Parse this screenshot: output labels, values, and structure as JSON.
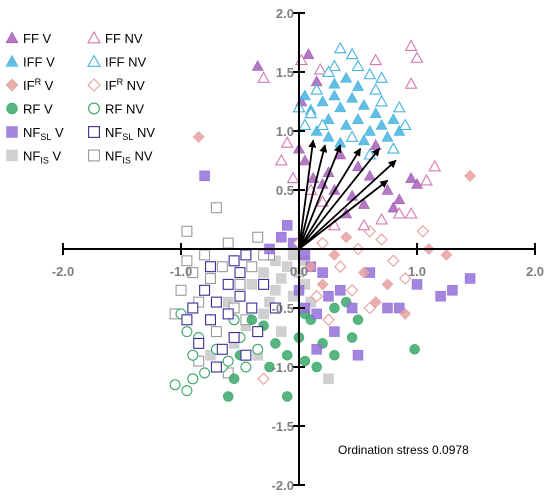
{
  "chart_data": {
    "type": "scatter",
    "title": "",
    "xlabel": "",
    "ylabel": "",
    "xlim": [
      -2.0,
      2.0
    ],
    "ylim": [
      -2.0,
      2.0
    ],
    "x_ticks": [
      "-2.0",
      "-1.0",
      "0.0",
      "1.0",
      "2.0"
    ],
    "y_ticks": [
      "2.0",
      "1.5",
      "1.0",
      "0.5",
      "-0.5",
      "-1.0",
      "-1.5",
      "-2.0"
    ],
    "grid": false,
    "legend_position": "top-left",
    "annotation": "Ordination stress 0.0978",
    "series": [
      {
        "name": "FF V",
        "marker": "triangle",
        "filled": true,
        "color": "#a65fb8",
        "points": [
          [
            -0.35,
            1.55
          ],
          [
            0.08,
            1.65
          ],
          [
            0.15,
            1.42
          ],
          [
            0.02,
            1.25
          ],
          [
            0.0,
            0.85
          ],
          [
            0.05,
            0.75
          ],
          [
            0.12,
            0.6
          ],
          [
            0.2,
            0.55
          ],
          [
            0.3,
            0.5
          ],
          [
            0.45,
            0.45
          ],
          [
            0.6,
            0.62
          ],
          [
            0.75,
            0.5
          ],
          [
            0.85,
            0.42
          ],
          [
            0.95,
            0.6
          ],
          [
            1.0,
            0.55
          ],
          [
            0.5,
            0.7
          ],
          [
            0.35,
            0.8
          ],
          [
            0.65,
            0.88
          ],
          [
            0.55,
            0.38
          ],
          [
            0.4,
            0.3
          ],
          [
            0.25,
            0.65
          ],
          [
            0.8,
            0.35
          ]
        ]
      },
      {
        "name": "FF NV",
        "marker": "triangle",
        "filled": false,
        "color": "#d678b0",
        "points": [
          [
            -0.3,
            1.45
          ],
          [
            0.02,
            1.6
          ],
          [
            0.18,
            1.52
          ],
          [
            0.65,
            1.6
          ],
          [
            0.95,
            1.72
          ],
          [
            1.0,
            1.62
          ],
          [
            0.95,
            1.4
          ],
          [
            -0.15,
            0.75
          ],
          [
            -0.05,
            0.6
          ],
          [
            0.1,
            0.5
          ],
          [
            0.2,
            0.4
          ],
          [
            0.85,
            0.3
          ],
          [
            0.95,
            0.3
          ],
          [
            1.08,
            0.58
          ],
          [
            1.15,
            0.7
          ],
          [
            0.7,
            0.25
          ],
          [
            0.55,
            0.2
          ],
          [
            0.3,
            0.2
          ],
          [
            -0.1,
            0.9
          ]
        ]
      },
      {
        "name": "IFF V",
        "marker": "triangle",
        "filled": true,
        "color": "#45b3e0",
        "points": [
          [
            0.05,
            1.3
          ],
          [
            0.1,
            1.18
          ],
          [
            0.2,
            1.25
          ],
          [
            0.25,
            1.1
          ],
          [
            0.3,
            1.3
          ],
          [
            0.35,
            1.2
          ],
          [
            0.4,
            1.05
          ],
          [
            0.45,
            1.28
          ],
          [
            0.5,
            1.1
          ],
          [
            0.55,
            1.22
          ],
          [
            0.6,
            1.0
          ],
          [
            0.65,
            1.15
          ],
          [
            0.7,
            1.05
          ],
          [
            0.75,
            0.95
          ],
          [
            0.8,
            1.1
          ],
          [
            0.85,
            1.0
          ],
          [
            0.3,
            1.4
          ],
          [
            0.4,
            1.45
          ],
          [
            0.5,
            1.38
          ],
          [
            0.25,
            0.95
          ],
          [
            0.15,
            1.0
          ],
          [
            0.35,
            0.9
          ],
          [
            0.55,
            0.92
          ]
        ]
      },
      {
        "name": "IFF NV",
        "marker": "triangle",
        "filled": false,
        "color": "#45b3e0",
        "points": [
          [
            0.35,
            1.7
          ],
          [
            0.45,
            1.65
          ],
          [
            0.3,
            1.55
          ],
          [
            0.5,
            1.55
          ],
          [
            0.6,
            1.48
          ],
          [
            0.7,
            1.45
          ],
          [
            0.15,
            1.35
          ],
          [
            0.0,
            1.2
          ],
          [
            0.05,
            1.05
          ],
          [
            0.2,
            1.05
          ],
          [
            0.7,
            1.25
          ],
          [
            0.85,
            1.2
          ],
          [
            0.9,
            1.05
          ],
          [
            0.8,
            0.85
          ],
          [
            0.6,
            0.8
          ],
          [
            0.45,
            0.95
          ],
          [
            0.1,
            1.15
          ],
          [
            0.25,
            1.5
          ],
          [
            0.65,
            1.35
          ]
        ]
      },
      {
        "name": "IF^R V",
        "marker": "diamond",
        "filled": true,
        "color": "#e8a0a0",
        "points": [
          [
            -0.85,
            0.95
          ],
          [
            1.45,
            0.62
          ],
          [
            1.1,
            0.0
          ],
          [
            0.9,
            -0.55
          ],
          [
            0.75,
            -0.3
          ],
          [
            0.55,
            -0.2
          ],
          [
            0.3,
            -0.05
          ],
          [
            0.4,
            0.1
          ],
          [
            0.2,
            -0.3
          ],
          [
            1.25,
            -0.05
          ],
          [
            0.65,
            -0.45
          ],
          [
            0.1,
            -0.15
          ]
        ]
      },
      {
        "name": "IF^R NV",
        "marker": "diamond",
        "filled": false,
        "color": "#e8a0a0",
        "points": [
          [
            0.6,
            0.15
          ],
          [
            0.7,
            0.08
          ],
          [
            0.8,
            -0.1
          ],
          [
            0.5,
            0.0
          ],
          [
            0.35,
            -0.15
          ],
          [
            0.2,
            0.05
          ],
          [
            0.45,
            -0.35
          ],
          [
            0.6,
            -0.5
          ],
          [
            0.25,
            -0.6
          ],
          [
            0.15,
            -0.4
          ],
          [
            1.05,
            0.15
          ],
          [
            0.9,
            -0.25
          ],
          [
            -0.3,
            -1.1
          ],
          [
            0.0,
            0.05
          ]
        ]
      },
      {
        "name": "RF V",
        "marker": "circle",
        "filled": true,
        "color": "#3aa86a",
        "points": [
          [
            -0.3,
            -0.65
          ],
          [
            -0.2,
            -0.8
          ],
          [
            -0.1,
            -0.9
          ],
          [
            0.0,
            -0.75
          ],
          [
            0.1,
            -0.6
          ],
          [
            0.2,
            -0.8
          ],
          [
            0.3,
            -0.5
          ],
          [
            0.4,
            -0.45
          ],
          [
            0.5,
            -0.6
          ],
          [
            -0.5,
            -0.9
          ],
          [
            -0.55,
            -1.1
          ],
          [
            -0.6,
            -1.25
          ],
          [
            -0.1,
            -1.25
          ],
          [
            0.05,
            -0.95
          ],
          [
            0.15,
            -1.0
          ],
          [
            0.3,
            -0.9
          ],
          [
            0.45,
            -0.75
          ],
          [
            0.98,
            -0.85
          ],
          [
            -0.4,
            -0.6
          ],
          [
            -0.25,
            -1.0
          ],
          [
            0.05,
            -0.55
          ]
        ]
      },
      {
        "name": "RF NV",
        "marker": "circle",
        "filled": false,
        "color": "#3aa86a",
        "points": [
          [
            -1.0,
            -0.55
          ],
          [
            -0.95,
            -0.7
          ],
          [
            -0.9,
            -0.9
          ],
          [
            -0.8,
            -1.05
          ],
          [
            -0.7,
            -0.85
          ],
          [
            -0.65,
            -1.0
          ],
          [
            -0.75,
            -0.6
          ],
          [
            -0.9,
            -1.1
          ],
          [
            -0.95,
            -1.2
          ],
          [
            -0.6,
            -0.95
          ],
          [
            -0.5,
            -0.75
          ],
          [
            -0.45,
            -1.0
          ],
          [
            -0.35,
            -0.85
          ],
          [
            -0.85,
            -0.75
          ],
          [
            -0.55,
            -0.6
          ],
          [
            -1.05,
            -1.15
          ]
        ]
      },
      {
        "name": "NF_SL V",
        "marker": "square",
        "filled": true,
        "color": "#9370db",
        "points": [
          [
            -0.8,
            0.62
          ],
          [
            -0.25,
            0.0
          ],
          [
            -0.1,
            0.2
          ],
          [
            -0.15,
            0.1
          ],
          [
            0.1,
            -0.15
          ],
          [
            0.0,
            -0.35
          ],
          [
            0.05,
            -0.5
          ],
          [
            0.15,
            -0.55
          ],
          [
            0.25,
            -0.4
          ],
          [
            0.2,
            -0.2
          ],
          [
            0.35,
            -0.35
          ],
          [
            0.6,
            -0.2
          ],
          [
            0.75,
            -0.5
          ],
          [
            0.85,
            -0.5
          ],
          [
            1.0,
            -0.3
          ],
          [
            1.2,
            -0.4
          ],
          [
            1.3,
            -0.35
          ],
          [
            1.45,
            -0.25
          ],
          [
            0.45,
            -0.5
          ],
          [
            0.3,
            -0.7
          ],
          [
            0.5,
            -0.9
          ],
          [
            0.15,
            -0.85
          ],
          [
            0.05,
            -0.05
          ],
          [
            -0.05,
            0.05
          ]
        ]
      },
      {
        "name": "NF_SL NV",
        "marker": "square",
        "filled": false,
        "color": "#3b2e9a",
        "points": [
          [
            -0.45,
            -0.05
          ],
          [
            -0.5,
            -0.2
          ],
          [
            -0.6,
            -0.3
          ],
          [
            -0.7,
            -0.45
          ],
          [
            -0.8,
            -0.35
          ],
          [
            -0.9,
            -0.5
          ],
          [
            -0.75,
            -0.6
          ],
          [
            -0.6,
            -0.55
          ],
          [
            -0.5,
            -0.4
          ],
          [
            -0.4,
            -0.5
          ],
          [
            -0.35,
            -0.7
          ],
          [
            -0.55,
            -0.75
          ],
          [
            -0.65,
            -0.85
          ],
          [
            -0.85,
            -0.8
          ],
          [
            -0.95,
            -0.6
          ],
          [
            -0.3,
            -0.3
          ],
          [
            -0.2,
            -0.5
          ],
          [
            -0.45,
            -0.9
          ],
          [
            -0.7,
            -1.0
          ],
          [
            -0.55,
            -0.1
          ],
          [
            -0.75,
            -0.15
          ]
        ]
      },
      {
        "name": "NF_IS V",
        "marker": "square",
        "filled": true,
        "color": "#c8c8c8",
        "points": [
          [
            -0.05,
            -0.05
          ],
          [
            -0.1,
            -0.15
          ],
          [
            -0.15,
            -0.25
          ],
          [
            -0.2,
            -0.35
          ],
          [
            -0.25,
            -0.45
          ],
          [
            -0.3,
            -0.55
          ],
          [
            0.0,
            -0.2
          ],
          [
            0.05,
            -0.3
          ],
          [
            -0.05,
            -0.4
          ],
          [
            0.1,
            -0.45
          ],
          [
            -0.45,
            -0.65
          ],
          [
            -0.55,
            -0.8
          ],
          [
            -0.35,
            -0.9
          ],
          [
            0.25,
            -1.1
          ],
          [
            0.05,
            -0.1
          ],
          [
            -0.2,
            -0.1
          ],
          [
            -0.3,
            -0.2
          ],
          [
            -0.4,
            -0.3
          ],
          [
            -0.6,
            -0.45
          ],
          [
            -0.75,
            -0.9
          ],
          [
            -0.15,
            -0.7
          ]
        ]
      },
      {
        "name": "NF_IS NV",
        "marker": "square",
        "filled": false,
        "color": "#9a9a9a",
        "points": [
          [
            -0.95,
            0.15
          ],
          [
            -0.7,
            0.35
          ],
          [
            -0.6,
            0.05
          ],
          [
            -0.8,
            -0.05
          ],
          [
            -0.9,
            -0.2
          ],
          [
            -1.0,
            -0.35
          ],
          [
            -0.85,
            -0.45
          ],
          [
            -0.75,
            -0.25
          ],
          [
            -0.65,
            -0.15
          ],
          [
            -0.5,
            -0.3
          ],
          [
            -0.4,
            -0.15
          ],
          [
            -0.35,
            0.1
          ],
          [
            -0.25,
            -0.05
          ],
          [
            -1.05,
            -0.55
          ],
          [
            -0.95,
            -0.1
          ],
          [
            -0.55,
            -0.5
          ],
          [
            -0.45,
            -0.6
          ],
          [
            -0.7,
            -0.7
          ],
          [
            -0.85,
            -0.95
          ],
          [
            -0.6,
            -1.05
          ],
          [
            -0.3,
            -0.05
          ]
        ]
      }
    ],
    "arrows": [
      [
        0.12,
        0.92
      ],
      [
        0.22,
        0.88
      ],
      [
        0.35,
        0.88
      ],
      [
        0.52,
        0.85
      ],
      [
        0.68,
        0.85
      ],
      [
        0.82,
        0.75
      ],
      [
        0.75,
        0.58
      ]
    ]
  },
  "legend": {
    "rows": [
      [
        {
          "main": "FF",
          "sub": "",
          "rest": " V"
        },
        {
          "main": "FF",
          "sub": "",
          "rest": " NV"
        }
      ],
      [
        {
          "main": "IFF",
          "sub": "",
          "rest": " V"
        },
        {
          "main": "IFF",
          "sub": "",
          "rest": " NV"
        }
      ],
      [
        {
          "main": "IF",
          "sup": "R",
          "rest": " V"
        },
        {
          "main": "IF",
          "sup": "R",
          "rest": " NV"
        }
      ],
      [
        {
          "main": "RF",
          "sub": "",
          "rest": " V"
        },
        {
          "main": "RF",
          "sub": "",
          "rest": " NV"
        }
      ],
      [
        {
          "main": "NF",
          "sub": "SL",
          "rest": " V"
        },
        {
          "main": "NF",
          "sub": "SL",
          "rest": " NV"
        }
      ],
      [
        {
          "main": "NF",
          "sub": "IS",
          "rest": " V"
        },
        {
          "main": "NF",
          "sub": "IS",
          "rest": " NV"
        }
      ]
    ]
  }
}
